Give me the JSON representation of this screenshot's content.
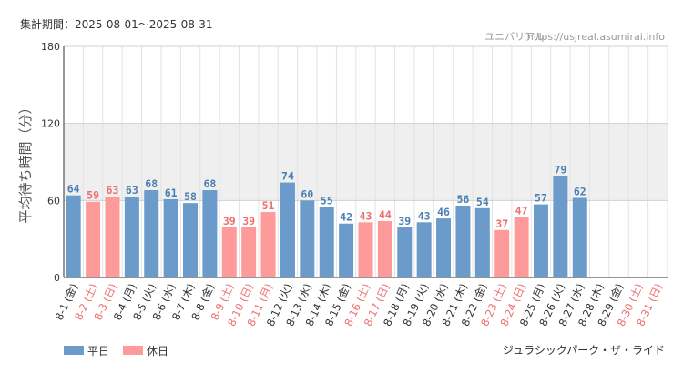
{
  "header": {
    "period": "集計期間：2025-08-01～2025-08-31",
    "site": "ユニバリアル",
    "url": "https://usjreal.asumirai.info"
  },
  "footer": {
    "ride_name": "ジュラシックパーク・ザ・ライド"
  },
  "colors": {
    "weekday": "#6a9bcb",
    "holiday": "#ff9a9a",
    "weekday_label": "#4a7fb5",
    "holiday_label": "#ee6e6e",
    "band": "#efefef",
    "grid": "#e3e3e3"
  },
  "chart_data": {
    "type": "bar",
    "ylabel": "平均待ち時間（分）",
    "ylim": [
      0,
      180
    ],
    "yticks": [
      0,
      60,
      120,
      180
    ],
    "highlight_band": [
      60,
      120
    ],
    "grid": true,
    "legend_position": "bottom-left",
    "legend": [
      {
        "name": "平日",
        "kind": "weekday"
      },
      {
        "name": "休日",
        "kind": "holiday"
      }
    ],
    "categories": [
      "8-1 (金)",
      "8-2 (土)",
      "8-3 (日)",
      "8-4 (月)",
      "8-5 (火)",
      "8-6 (水)",
      "8-7 (木)",
      "8-8 (金)",
      "8-9 (土)",
      "8-10 (日)",
      "8-11 (月)",
      "8-12 (火)",
      "8-13 (水)",
      "8-14 (木)",
      "8-15 (金)",
      "8-16 (土)",
      "8-17 (日)",
      "8-18 (月)",
      "8-19 (火)",
      "8-20 (水)",
      "8-21 (木)",
      "8-22 (金)",
      "8-23 (土)",
      "8-24 (日)",
      "8-25 (月)",
      "8-26 (火)",
      "8-27 (水)",
      "8-28 (木)",
      "8-29 (金)",
      "8-30 (土)",
      "8-31 (日)"
    ],
    "kinds": [
      "weekday",
      "holiday",
      "holiday",
      "weekday",
      "weekday",
      "weekday",
      "weekday",
      "weekday",
      "holiday",
      "holiday",
      "holiday",
      "weekday",
      "weekday",
      "weekday",
      "weekday",
      "holiday",
      "holiday",
      "weekday",
      "weekday",
      "weekday",
      "weekday",
      "weekday",
      "holiday",
      "holiday",
      "weekday",
      "weekday",
      "weekday",
      "weekday",
      "weekday",
      "holiday",
      "holiday"
    ],
    "values": [
      64,
      59,
      63,
      63,
      68,
      61,
      58,
      68,
      39,
      39,
      51,
      74,
      60,
      55,
      42,
      43,
      44,
      39,
      43,
      46,
      56,
      54,
      37,
      47,
      57,
      79,
      62,
      null,
      null,
      null,
      null
    ]
  }
}
